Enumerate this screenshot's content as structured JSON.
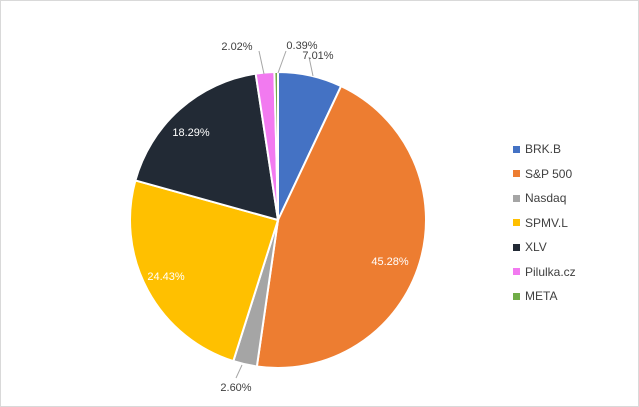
{
  "chart_data": {
    "type": "pie",
    "title": "",
    "legend_position": "right",
    "slices": [
      {
        "label": "BRK.B",
        "value": 7.01,
        "display": "7.01%",
        "color": "#4472C4"
      },
      {
        "label": "S&P 500",
        "value": 45.28,
        "display": "45.28%",
        "color": "#ED7D31"
      },
      {
        "label": "Nasdaq",
        "value": 2.6,
        "display": "2.60%",
        "color": "#A5A5A5"
      },
      {
        "label": "SPMV.L",
        "value": 24.43,
        "display": "24.43%",
        "color": "#FFC000"
      },
      {
        "label": "XLV",
        "value": 18.29,
        "display": "18.29%",
        "color": "#222A35"
      },
      {
        "label": "Pilulka.cz",
        "value": 2.02,
        "display": "2.02%",
        "color": "#F27AF0"
      },
      {
        "label": "META",
        "value": 0.39,
        "display": "0.39%",
        "color": "#70AD47"
      }
    ]
  }
}
